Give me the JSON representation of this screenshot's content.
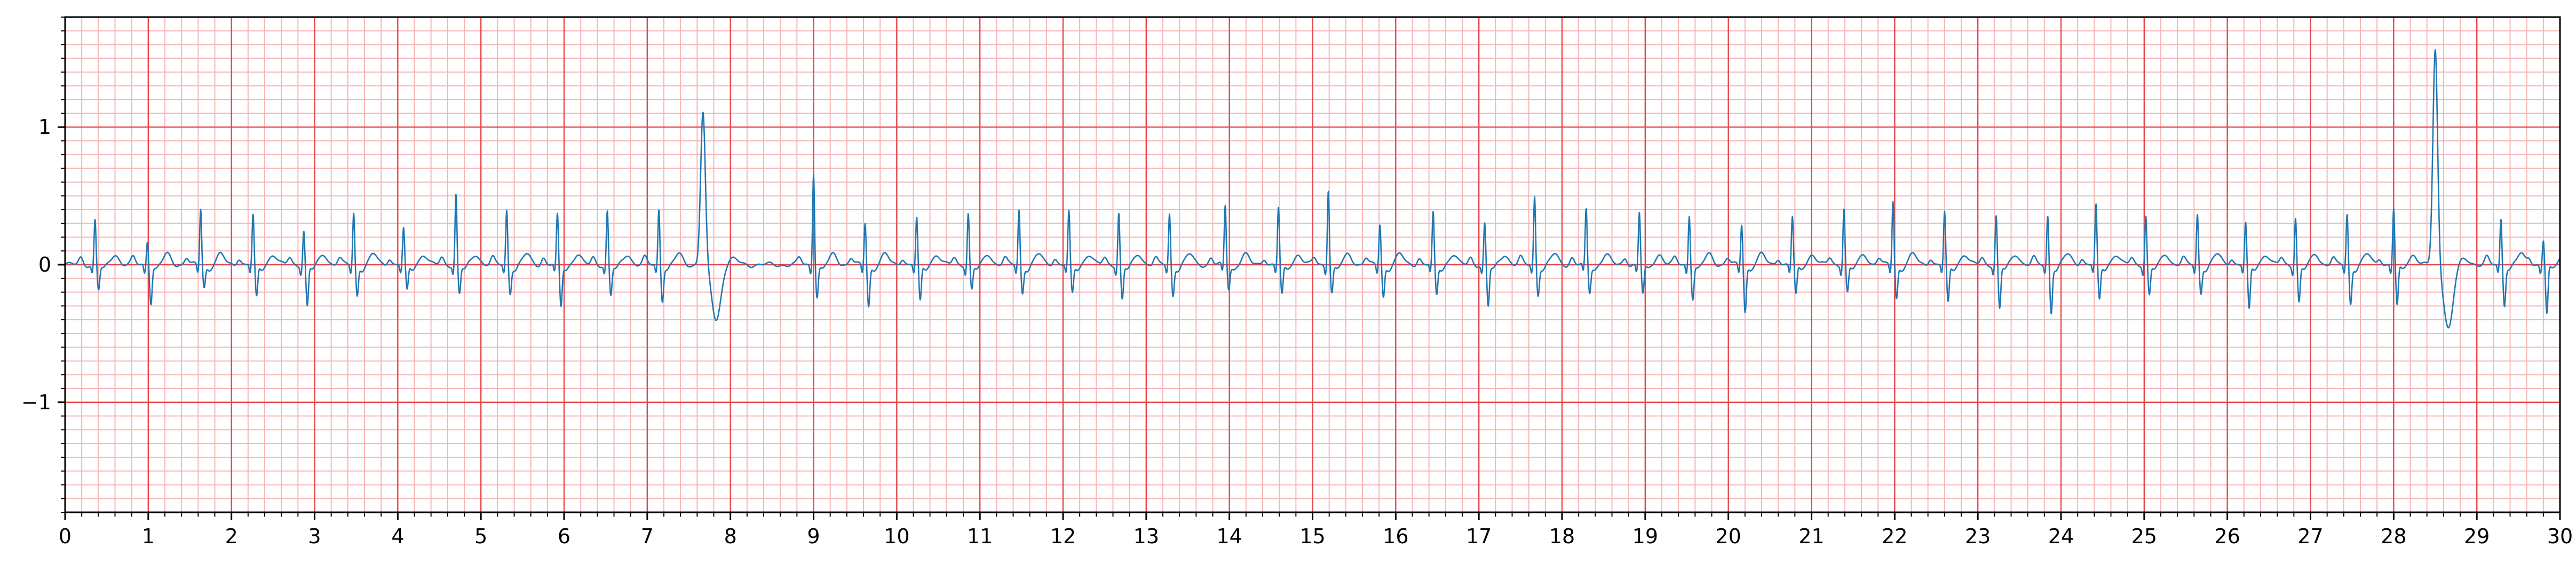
{
  "chart_data": {
    "type": "line",
    "title": "",
    "xlabel": "",
    "ylabel": "",
    "xlim": [
      0,
      30
    ],
    "ylim": [
      -1.8,
      1.8
    ],
    "grid": true,
    "x_ticks": [
      0,
      1,
      2,
      3,
      4,
      5,
      6,
      7,
      8,
      9,
      10,
      11,
      12,
      13,
      14,
      15,
      16,
      17,
      18,
      19,
      20,
      21,
      22,
      23,
      24,
      25,
      26,
      27,
      28,
      29,
      30
    ],
    "x_tick_labels": [
      "0",
      "1",
      "2",
      "3",
      "4",
      "5",
      "6",
      "7",
      "8",
      "9",
      "10",
      "11",
      "12",
      "13",
      "14",
      "15",
      "16",
      "17",
      "18",
      "19",
      "20",
      "21",
      "22",
      "23",
      "24",
      "25",
      "26",
      "27",
      "28",
      "29",
      "30"
    ],
    "y_ticks": [
      -1,
      0,
      1
    ],
    "y_tick_labels": [
      "−1",
      "0",
      "1"
    ],
    "colors": {
      "trace": "#1f77b4",
      "major_grid": "#e8474b",
      "minor_grid": "#f7b5b5",
      "axis": "#000000"
    },
    "series": [
      {
        "beats": [
          {
            "t": 0.36,
            "r": 0.33,
            "s": -0.18
          },
          {
            "t": 0.99,
            "r": 0.18,
            "s": -0.27
          },
          {
            "t": 1.63,
            "r": 0.41,
            "s": -0.16
          },
          {
            "t": 2.26,
            "r": 0.36,
            "s": -0.24
          },
          {
            "t": 2.87,
            "r": 0.25,
            "s": -0.3
          },
          {
            "t": 3.47,
            "r": 0.38,
            "s": -0.22
          },
          {
            "t": 4.07,
            "r": 0.26,
            "s": -0.19
          },
          {
            "t": 4.7,
            "r": 0.51,
            "s": -0.21
          },
          {
            "t": 5.31,
            "r": 0.4,
            "s": -0.2
          },
          {
            "t": 5.92,
            "r": 0.36,
            "s": -0.3
          },
          {
            "t": 6.52,
            "r": 0.39,
            "s": -0.22
          },
          {
            "t": 7.14,
            "r": 0.41,
            "s": -0.25
          },
          {
            "t": 7.67,
            "r": 1.11,
            "s": -0.4,
            "wide": true
          },
          {
            "t": 9.0,
            "r": 0.68,
            "s": -0.23
          },
          {
            "t": 9.62,
            "r": 0.31,
            "s": -0.3
          },
          {
            "t": 10.24,
            "r": 0.34,
            "s": -0.27
          },
          {
            "t": 10.86,
            "r": 0.38,
            "s": -0.18
          },
          {
            "t": 11.47,
            "r": 0.4,
            "s": -0.2
          },
          {
            "t": 12.07,
            "r": 0.38,
            "s": -0.21
          },
          {
            "t": 12.67,
            "r": 0.38,
            "s": -0.25
          },
          {
            "t": 13.28,
            "r": 0.37,
            "s": -0.22
          },
          {
            "t": 13.95,
            "r": 0.43,
            "s": -0.17
          },
          {
            "t": 14.59,
            "r": 0.42,
            "s": -0.22
          },
          {
            "t": 15.19,
            "r": 0.56,
            "s": -0.2
          },
          {
            "t": 15.81,
            "r": 0.3,
            "s": -0.23
          },
          {
            "t": 16.45,
            "r": 0.37,
            "s": -0.22
          },
          {
            "t": 17.07,
            "r": 0.3,
            "s": -0.3
          },
          {
            "t": 17.67,
            "r": 0.5,
            "s": -0.21
          },
          {
            "t": 18.29,
            "r": 0.4,
            "s": -0.2
          },
          {
            "t": 18.93,
            "r": 0.38,
            "s": -0.21
          },
          {
            "t": 19.53,
            "r": 0.37,
            "s": -0.24
          },
          {
            "t": 20.16,
            "r": 0.3,
            "s": -0.34
          },
          {
            "t": 20.77,
            "r": 0.35,
            "s": -0.22
          },
          {
            "t": 21.39,
            "r": 0.42,
            "s": -0.2
          },
          {
            "t": 21.98,
            "r": 0.47,
            "s": -0.24
          },
          {
            "t": 22.6,
            "r": 0.38,
            "s": -0.28
          },
          {
            "t": 23.22,
            "r": 0.36,
            "s": -0.32
          },
          {
            "t": 23.84,
            "r": 0.36,
            "s": -0.34
          },
          {
            "t": 24.42,
            "r": 0.43,
            "s": -0.26
          },
          {
            "t": 25.02,
            "r": 0.36,
            "s": -0.22
          },
          {
            "t": 25.64,
            "r": 0.37,
            "s": -0.2
          },
          {
            "t": 26.22,
            "r": 0.3,
            "s": -0.33
          },
          {
            "t": 26.82,
            "r": 0.35,
            "s": -0.27
          },
          {
            "t": 27.44,
            "r": 0.37,
            "s": -0.28
          },
          {
            "t": 28.0,
            "r": 0.41,
            "s": -0.3
          },
          {
            "t": 28.5,
            "r": 1.56,
            "s": -0.46,
            "wide": true
          },
          {
            "t": 29.29,
            "r": 0.34,
            "s": -0.28
          },
          {
            "t": 29.8,
            "r": 0.18,
            "s": -0.36
          }
        ]
      }
    ]
  }
}
